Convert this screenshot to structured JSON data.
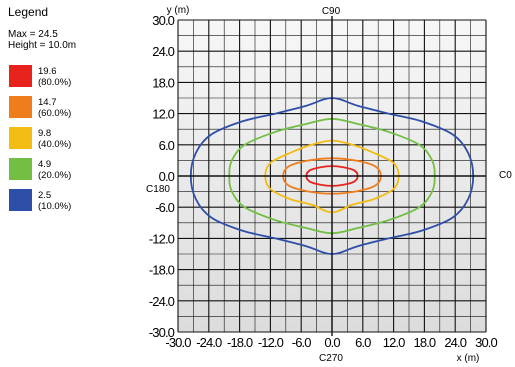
{
  "legend": {
    "title": "Legend",
    "max_text": "Max = 24.5",
    "height_text": "Height = 10.0m",
    "items": [
      {
        "value": "19.6",
        "pct": "(80.0%)",
        "color": "#e8231e"
      },
      {
        "value": "14.7",
        "pct": "(60.0%)",
        "color": "#f07d1c"
      },
      {
        "value": "9.8",
        "pct": "(40.0%)",
        "color": "#f2bc13"
      },
      {
        "value": "4.9",
        "pct": "(20.0%)",
        "color": "#72bf44"
      },
      {
        "value": "2.5",
        "pct": "(10.0%)",
        "color": "#2e4fa8"
      }
    ]
  },
  "chart_data": {
    "type": "contour",
    "xlabel": "x (m)",
    "ylabel": "y (m)",
    "xlim": [
      -30,
      30
    ],
    "ylim": [
      -30,
      30
    ],
    "x_ticks": [
      -30,
      -24,
      -18,
      -12,
      -6,
      0,
      6,
      12,
      18,
      24,
      30
    ],
    "x_tick_labels": [
      "-30.0",
      "-24.0",
      "-18.0",
      "-12.0",
      "-6.0",
      "0.0",
      "6.0",
      "12.0",
      "18.0",
      "24.0",
      "30.0"
    ],
    "y_ticks": [
      30,
      24,
      18,
      12,
      6,
      0,
      -6,
      -12,
      -18,
      -24,
      -30
    ],
    "y_tick_labels": [
      "30.0",
      "24.0",
      "18.0",
      "12.0",
      "6.0",
      "0.0",
      "-6.0",
      "-12.0",
      "-18.0",
      "-24.0",
      "-30.0"
    ],
    "grid": true,
    "direction_labels": {
      "top": "C90",
      "right": "C0",
      "bottom": "C270",
      "left": "C180"
    },
    "contours": [
      {
        "level": 2.5,
        "color": "#2e4fa8",
        "points": [
          [
            -27.5,
            0
          ],
          [
            -26.5,
            4.5
          ],
          [
            -23.5,
            8
          ],
          [
            -17.5,
            10.5
          ],
          [
            -11,
            12
          ],
          [
            -5,
            13.5
          ],
          [
            0,
            15
          ],
          [
            5,
            13.5
          ],
          [
            11,
            12
          ],
          [
            17.5,
            10.5
          ],
          [
            23.5,
            8
          ],
          [
            26.5,
            4.5
          ],
          [
            27.5,
            0
          ],
          [
            26.5,
            -4.5
          ],
          [
            23.5,
            -8
          ],
          [
            17.5,
            -10.5
          ],
          [
            11,
            -12
          ],
          [
            5,
            -13.5
          ],
          [
            0,
            -15
          ],
          [
            -5,
            -13.5
          ],
          [
            -11,
            -12
          ],
          [
            -17.5,
            -10.5
          ],
          [
            -23.5,
            -8
          ],
          [
            -26.5,
            -4.5
          ]
        ]
      },
      {
        "level": 4.9,
        "color": "#72bf44",
        "points": [
          [
            -20,
            0
          ],
          [
            -19.5,
            3
          ],
          [
            -17,
            6
          ],
          [
            -11,
            8.5
          ],
          [
            -5,
            10
          ],
          [
            0,
            11
          ],
          [
            5,
            10
          ],
          [
            11,
            8.5
          ],
          [
            17,
            6
          ],
          [
            19.5,
            3
          ],
          [
            20,
            0
          ],
          [
            19.5,
            -3
          ],
          [
            17,
            -6
          ],
          [
            11,
            -8.5
          ],
          [
            5,
            -10
          ],
          [
            0,
            -11
          ],
          [
            -5,
            -10
          ],
          [
            -11,
            -8.5
          ],
          [
            -17,
            -6
          ],
          [
            -19.5,
            -3
          ]
        ]
      },
      {
        "level": 9.8,
        "color": "#f2bc13",
        "points": [
          [
            -13,
            0
          ],
          [
            -12,
            2.5
          ],
          [
            -8,
            4.5
          ],
          [
            -4,
            6
          ],
          [
            0,
            6.8
          ],
          [
            4,
            6
          ],
          [
            8,
            4.5
          ],
          [
            12,
            2.5
          ],
          [
            13,
            0
          ],
          [
            12,
            -2.5
          ],
          [
            8,
            -4.5
          ],
          [
            4,
            -5.5
          ],
          [
            0,
            -7
          ],
          [
            -4,
            -5.5
          ],
          [
            -8,
            -4.5
          ],
          [
            -12,
            -2.5
          ]
        ]
      },
      {
        "level": 14.7,
        "color": "#f07d1c",
        "points": [
          [
            -9.5,
            0
          ],
          [
            -8.5,
            1.8
          ],
          [
            -5,
            2.9
          ],
          [
            0,
            3.4
          ],
          [
            5,
            2.9
          ],
          [
            8.5,
            1.8
          ],
          [
            9.5,
            0
          ],
          [
            8.5,
            -1.8
          ],
          [
            5,
            -2.9
          ],
          [
            0,
            -3.4
          ],
          [
            -5,
            -2.9
          ],
          [
            -8.5,
            -1.8
          ]
        ]
      },
      {
        "level": 19.6,
        "color": "#e8231e",
        "points": [
          [
            -5,
            0
          ],
          [
            -4.3,
            1.1
          ],
          [
            -2.2,
            1.7
          ],
          [
            0,
            1.9
          ],
          [
            2.2,
            1.7
          ],
          [
            4.3,
            1.1
          ],
          [
            5,
            0
          ],
          [
            4.3,
            -1.1
          ],
          [
            2.2,
            -1.7
          ],
          [
            0,
            -1.9
          ],
          [
            -2.2,
            -1.7
          ],
          [
            -4.3,
            -1.1
          ]
        ]
      }
    ]
  }
}
